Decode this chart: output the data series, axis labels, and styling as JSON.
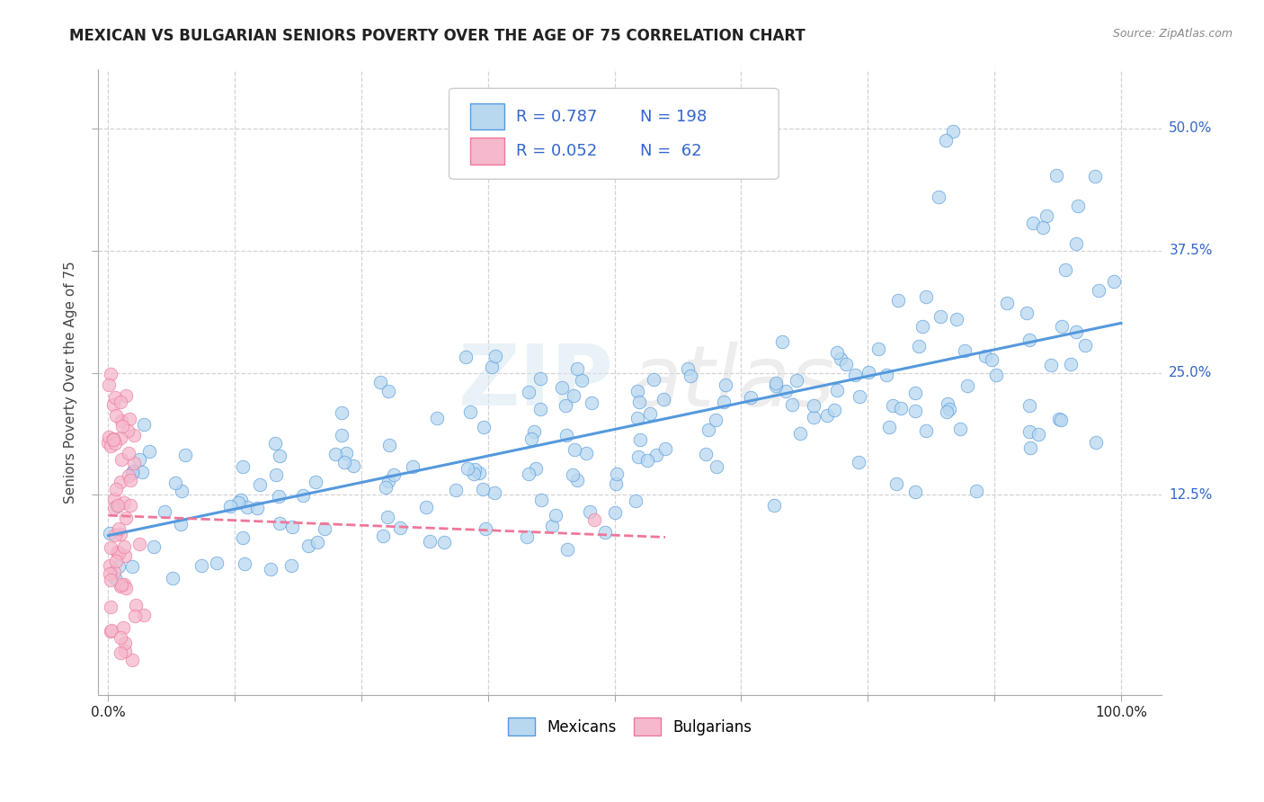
{
  "title": "MEXICAN VS BULGARIAN SENIORS POVERTY OVER THE AGE OF 75 CORRELATION CHART",
  "source": "Source: ZipAtlas.com",
  "ylabel": "Seniors Poverty Over the Age of 75",
  "background_color": "#ffffff",
  "plot_bg_color": "#ffffff",
  "grid_color": "#c8c8d0",
  "mexican_color": "#b8d8f0",
  "bulgarian_color": "#f5b8cc",
  "mexican_line_color": "#5599dd",
  "bulgarian_line_color": "#ee7799",
  "watermark_zip": "ZIP",
  "watermark_atlas": "atlas",
  "R_mexican": 0.787,
  "N_mexican": 198,
  "R_bulgarian": 0.052,
  "N_bulgarian": 62,
  "legend_r_mex": "0.787",
  "legend_n_mex": "198",
  "legend_r_bul": "0.052",
  "legend_n_bul": " 62",
  "xlim_min": -0.01,
  "xlim_max": 1.04,
  "ylim_min": -0.08,
  "ylim_max": 0.56,
  "ytick_values": [
    0.125,
    0.25,
    0.375,
    0.5
  ],
  "ytick_labels": [
    "12.5%",
    "25.0%",
    "37.5%",
    "50.0%"
  ],
  "title_fontsize": 12,
  "source_fontsize": 9,
  "label_color": "#3366cc",
  "axis_label_color": "#444444",
  "text_color": "#222222",
  "mex_line_start_y": 0.095,
  "mex_line_end_y": 0.275,
  "bul_line_start_y": 0.135,
  "bul_line_end_y": 0.145
}
